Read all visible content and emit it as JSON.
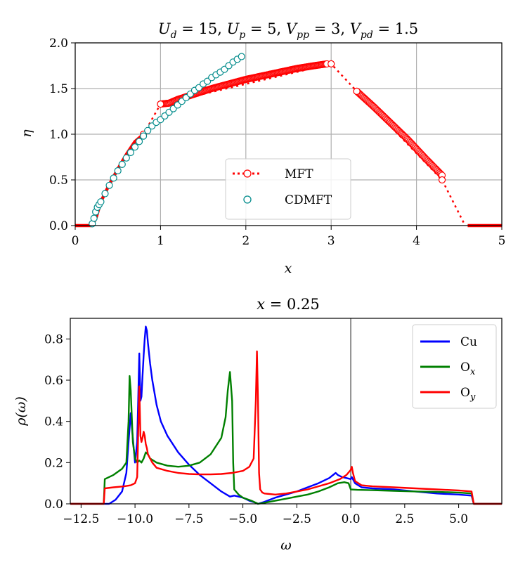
{
  "chart_data": [
    {
      "type": "line",
      "title_parts": {
        "U": "U",
        "d": "d",
        "eq1": " = 15, ",
        "Up": "U",
        "p": "p",
        "eq2": " = 5, ",
        "Vpp": "V",
        "pp": "pp",
        "eq3": " = 3, ",
        "Vpd": "V",
        "pd": "pd",
        "eq4": " = 1.5"
      },
      "xlabel": "x",
      "ylabel": "η",
      "xlim": [
        0,
        5
      ],
      "ylim": [
        0,
        2.0
      ],
      "xticks": [
        0,
        1,
        2,
        3,
        4,
        5
      ],
      "xtick_labels": [
        "0",
        "1",
        "2",
        "3",
        "4",
        "5"
      ],
      "yticks": [
        0,
        0.5,
        1.0,
        1.5,
        2.0
      ],
      "ytick_labels": [
        "0.0",
        "0.5",
        "1.0",
        "1.5",
        "2.0"
      ],
      "grid": true,
      "legend_position": "lower-center",
      "series": [
        {
          "name": "MFT",
          "color": "#ff0000",
          "style": "dotted-with-hollow-circles",
          "segments": [
            {
              "kind": "line",
              "x": [
                0.0,
                0.2,
                0.25,
                0.3,
                0.4,
                0.5,
                0.6,
                0.7,
                0.8
              ],
              "y": [
                0.0,
                0.0,
                0.1,
                0.26,
                0.45,
                0.62,
                0.78,
                0.92,
                1.0
              ]
            },
            {
              "kind": "dense",
              "x": [
                1.0,
                1.1,
                1.2,
                1.4,
                1.6,
                1.8,
                2.0,
                2.2,
                2.4,
                2.6,
                2.8,
                2.95
              ],
              "y": [
                1.33,
                1.34,
                1.38,
                1.44,
                1.5,
                1.55,
                1.6,
                1.64,
                1.68,
                1.72,
                1.75,
                1.77
              ]
            },
            {
              "kind": "dense",
              "x": [
                3.3,
                3.5,
                3.7,
                3.9,
                4.1,
                4.3
              ],
              "y": [
                1.47,
                1.3,
                1.12,
                0.94,
                0.74,
                0.55
              ]
            },
            {
              "kind": "zero",
              "x": [
                4.6,
                5.0
              ],
              "y": [
                0.0,
                0.0
              ]
            }
          ],
          "markers": {
            "x": [
              0.8,
              1.0,
              3.0,
              3.3,
              4.3
            ],
            "y": [
              1.0,
              1.33,
              1.77,
              1.47,
              0.5
            ]
          },
          "dotted": {
            "x": [
              0.8,
              1.0,
              3.0,
              3.3,
              4.3,
              4.57
            ],
            "y": [
              1.0,
              1.33,
              1.77,
              1.47,
              0.5,
              0.0
            ]
          }
        },
        {
          "name": "CDMFT",
          "color": "#008b8b",
          "style": "hollow-circles",
          "x": [
            0.2,
            0.22,
            0.24,
            0.26,
            0.28,
            0.3,
            0.35,
            0.4,
            0.45,
            0.5,
            0.55,
            0.6,
            0.65,
            0.7,
            0.75,
            0.8,
            0.85,
            0.9,
            0.95,
            1.0,
            1.05,
            1.1,
            1.15,
            1.2,
            1.25,
            1.3,
            1.35,
            1.4,
            1.45,
            1.5,
            1.55,
            1.6,
            1.65,
            1.7,
            1.75,
            1.8,
            1.85,
            1.9,
            1.95
          ],
          "y": [
            0.02,
            0.08,
            0.15,
            0.2,
            0.23,
            0.26,
            0.35,
            0.44,
            0.52,
            0.6,
            0.67,
            0.74,
            0.8,
            0.86,
            0.92,
            0.98,
            1.04,
            1.09,
            1.13,
            1.16,
            1.2,
            1.24,
            1.28,
            1.32,
            1.36,
            1.4,
            1.44,
            1.48,
            1.51,
            1.55,
            1.58,
            1.62,
            1.65,
            1.68,
            1.71,
            1.75,
            1.79,
            1.82,
            1.85
          ]
        }
      ]
    },
    {
      "type": "line",
      "title": "x = 0.25",
      "title_var": "x",
      "title_rest": " = 0.25",
      "xlabel": "ω",
      "ylabel": "ρ(ω)",
      "xlim": [
        -13.0,
        7.0
      ],
      "ylim": [
        0,
        0.9
      ],
      "xticks": [
        -12.5,
        -10.0,
        -7.5,
        -5.0,
        -2.5,
        0.0,
        2.5,
        5.0
      ],
      "xtick_labels": [
        "−12.5",
        "−10.0",
        "−7.5",
        "−5.0",
        "−2.5",
        "0.0",
        "2.5",
        "5.0"
      ],
      "yticks": [
        0.0,
        0.2,
        0.4,
        0.6,
        0.8
      ],
      "ytick_labels": [
        "0.0",
        "0.2",
        "0.4",
        "0.6",
        "0.8"
      ],
      "vline_x": 0.0,
      "legend_position": "top-right",
      "series": [
        {
          "name": "Cu",
          "color": "#0000ff",
          "x": [
            -13.0,
            -11.2,
            -10.9,
            -10.6,
            -10.4,
            -10.3,
            -10.2,
            -10.1,
            -10.0,
            -9.9,
            -9.8,
            -9.75,
            -9.7,
            -9.65,
            -9.6,
            -9.55,
            -9.5,
            -9.45,
            -9.4,
            -9.3,
            -9.2,
            -9.0,
            -8.8,
            -8.5,
            -8.0,
            -7.5,
            -7.0,
            -6.5,
            -6.0,
            -5.6,
            -5.4,
            -5.2,
            -5.0,
            -4.7,
            -4.4,
            -4.3,
            -4.0,
            -3.5,
            -3.0,
            -2.5,
            -2.0,
            -1.5,
            -1.0,
            -0.7,
            -0.6,
            -0.4,
            -0.2,
            0.0,
            0.05,
            0.2,
            0.5,
            1.0,
            2.0,
            3.0,
            4.0,
            5.0,
            5.6,
            5.7,
            5.8,
            7.0
          ],
          "y": [
            0.0,
            0.0,
            0.02,
            0.06,
            0.15,
            0.3,
            0.44,
            0.32,
            0.2,
            0.3,
            0.73,
            0.5,
            0.52,
            0.62,
            0.72,
            0.8,
            0.86,
            0.84,
            0.78,
            0.68,
            0.6,
            0.48,
            0.4,
            0.33,
            0.25,
            0.19,
            0.14,
            0.1,
            0.06,
            0.035,
            0.04,
            0.035,
            0.03,
            0.015,
            0.005,
            0.0,
            0.01,
            0.03,
            0.045,
            0.06,
            0.08,
            0.1,
            0.125,
            0.15,
            0.14,
            0.13,
            0.125,
            0.12,
            0.13,
            0.1,
            0.08,
            0.075,
            0.07,
            0.06,
            0.05,
            0.045,
            0.04,
            0.0,
            0.0,
            0.0
          ]
        },
        {
          "name": "Oₓ",
          "label_main": "O",
          "label_sub": "x",
          "color": "#008000",
          "x": [
            -13.0,
            -11.45,
            -11.4,
            -11.0,
            -10.6,
            -10.4,
            -10.3,
            -10.25,
            -10.2,
            -10.1,
            -10.0,
            -9.9,
            -9.8,
            -9.7,
            -9.6,
            -9.5,
            -9.4,
            -9.3,
            -9.0,
            -8.5,
            -8.0,
            -7.5,
            -7.0,
            -6.5,
            -6.0,
            -5.8,
            -5.7,
            -5.6,
            -5.5,
            -5.45,
            -5.4,
            -5.2,
            -5.0,
            -4.6,
            -4.4,
            -4.3,
            -4.0,
            -3.5,
            -3.0,
            -2.5,
            -2.0,
            -1.5,
            -1.0,
            -0.6,
            -0.3,
            -0.1,
            0.0,
            0.3,
            1.0,
            2.0,
            3.0,
            4.0,
            5.0,
            5.6,
            5.7,
            5.8,
            7.0
          ],
          "y": [
            0.0,
            0.0,
            0.12,
            0.14,
            0.17,
            0.2,
            0.4,
            0.62,
            0.55,
            0.3,
            0.22,
            0.2,
            0.21,
            0.2,
            0.22,
            0.25,
            0.24,
            0.22,
            0.2,
            0.185,
            0.18,
            0.185,
            0.2,
            0.24,
            0.32,
            0.42,
            0.55,
            0.64,
            0.5,
            0.2,
            0.07,
            0.045,
            0.03,
            0.015,
            0.005,
            0.0,
            0.005,
            0.015,
            0.025,
            0.035,
            0.045,
            0.06,
            0.08,
            0.1,
            0.105,
            0.1,
            0.07,
            0.068,
            0.066,
            0.063,
            0.06,
            0.058,
            0.055,
            0.05,
            0.0,
            0.0,
            0.0
          ]
        },
        {
          "name": "Oᵧ",
          "label_main": "O",
          "label_sub": "y",
          "color": "#ff0000",
          "x": [
            -13.0,
            -11.45,
            -11.4,
            -11.0,
            -10.5,
            -10.2,
            -10.0,
            -9.9,
            -9.8,
            -9.75,
            -9.7,
            -9.65,
            -9.6,
            -9.55,
            -9.5,
            -9.45,
            -9.4,
            -9.3,
            -9.2,
            -9.0,
            -8.5,
            -8.0,
            -7.5,
            -7.0,
            -6.5,
            -6.0,
            -5.5,
            -5.0,
            -4.7,
            -4.5,
            -4.4,
            -4.35,
            -4.3,
            -4.25,
            -4.2,
            -4.1,
            -4.0,
            -3.5,
            -3.0,
            -2.5,
            -2.0,
            -1.5,
            -1.0,
            -0.5,
            -0.2,
            0.0,
            0.05,
            0.1,
            0.2,
            0.5,
            1.0,
            2.0,
            3.0,
            4.0,
            5.0,
            5.6,
            5.7,
            5.8,
            7.0
          ],
          "y": [
            0.0,
            0.0,
            0.075,
            0.08,
            0.085,
            0.09,
            0.1,
            0.13,
            0.57,
            0.33,
            0.3,
            0.32,
            0.35,
            0.33,
            0.29,
            0.27,
            0.24,
            0.22,
            0.2,
            0.175,
            0.16,
            0.15,
            0.145,
            0.143,
            0.143,
            0.145,
            0.15,
            0.16,
            0.18,
            0.22,
            0.5,
            0.74,
            0.5,
            0.15,
            0.07,
            0.055,
            0.05,
            0.045,
            0.05,
            0.06,
            0.07,
            0.085,
            0.1,
            0.12,
            0.14,
            0.165,
            0.18,
            0.15,
            0.11,
            0.09,
            0.085,
            0.08,
            0.075,
            0.07,
            0.065,
            0.06,
            0.0,
            0.0,
            0.0
          ]
        }
      ]
    }
  ]
}
